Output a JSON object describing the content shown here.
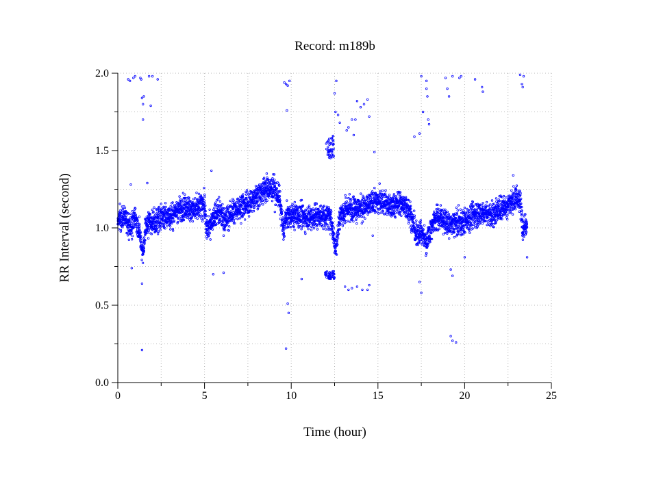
{
  "chart_data": {
    "type": "scatter",
    "title": "Record:  m189b",
    "xlabel": "Time (hour)",
    "ylabel": "RR Interval (second)",
    "xlim": [
      0,
      25
    ],
    "ylim": [
      0.0,
      2.0
    ],
    "xticks": [
      0,
      5,
      10,
      15,
      20,
      25
    ],
    "xtick_labels": [
      "0",
      "5",
      "10",
      "15",
      "20",
      "25"
    ],
    "yticks": [
      0.0,
      0.5,
      1.0,
      1.5,
      2.0
    ],
    "ytick_labels": [
      "0.0",
      "0.5",
      "1.0",
      "1.5",
      "2.0"
    ],
    "grid": true,
    "marker_color": "#0000ff",
    "marker": "open-circle",
    "series": [
      {
        "baseline": [
          [
            0.0,
            1.05
          ],
          [
            0.4,
            1.07
          ],
          [
            0.8,
            1.0
          ],
          [
            1.0,
            1.08
          ],
          [
            1.3,
            0.93
          ],
          [
            1.45,
            0.83
          ],
          [
            1.6,
            1.0
          ],
          [
            1.8,
            1.04
          ],
          [
            2.2,
            1.03
          ],
          [
            2.5,
            1.08
          ],
          [
            3.0,
            1.07
          ],
          [
            3.5,
            1.12
          ],
          [
            4.0,
            1.13
          ],
          [
            4.5,
            1.12
          ],
          [
            5.0,
            1.15
          ],
          [
            5.1,
            0.98
          ],
          [
            5.4,
            1.05
          ],
          [
            5.8,
            1.12
          ],
          [
            6.2,
            1.05
          ],
          [
            6.6,
            1.1
          ],
          [
            7.0,
            1.13
          ],
          [
            7.5,
            1.16
          ],
          [
            8.0,
            1.2
          ],
          [
            8.5,
            1.25
          ],
          [
            9.0,
            1.25
          ],
          [
            9.3,
            1.2
          ],
          [
            9.55,
            0.98
          ],
          [
            9.7,
            1.07
          ],
          [
            10.2,
            1.08
          ],
          [
            10.8,
            1.07
          ],
          [
            11.5,
            1.08
          ],
          [
            12.0,
            1.07
          ],
          [
            12.3,
            1.07
          ],
          [
            12.55,
            0.86
          ],
          [
            12.8,
            1.08
          ],
          [
            13.3,
            1.12
          ],
          [
            13.8,
            1.13
          ],
          [
            14.3,
            1.13
          ],
          [
            14.8,
            1.18
          ],
          [
            15.3,
            1.16
          ],
          [
            15.8,
            1.14
          ],
          [
            16.3,
            1.16
          ],
          [
            16.8,
            1.12
          ],
          [
            17.2,
            0.95
          ],
          [
            17.5,
            0.97
          ],
          [
            17.8,
            0.9
          ],
          [
            18.2,
            1.05
          ],
          [
            18.6,
            1.07
          ],
          [
            19.0,
            1.02
          ],
          [
            19.5,
            1.03
          ],
          [
            20.0,
            1.05
          ],
          [
            20.5,
            1.08
          ],
          [
            21.0,
            1.1
          ],
          [
            21.5,
            1.08
          ],
          [
            22.0,
            1.12
          ],
          [
            22.5,
            1.15
          ],
          [
            23.0,
            1.2
          ],
          [
            23.25,
            1.15
          ],
          [
            23.35,
            1.0
          ],
          [
            23.6,
            1.05
          ]
        ],
        "outliers": [
          [
            0.6,
            1.96
          ],
          [
            0.7,
            1.95
          ],
          [
            0.9,
            1.97
          ],
          [
            1.0,
            1.98
          ],
          [
            1.3,
            1.97
          ],
          [
            1.35,
            1.96
          ],
          [
            1.4,
            1.84
          ],
          [
            1.45,
            1.8
          ],
          [
            1.5,
            1.85
          ],
          [
            1.8,
            1.98
          ],
          [
            1.9,
            1.79
          ],
          [
            2.0,
            1.98
          ],
          [
            2.3,
            1.96
          ],
          [
            1.45,
            1.7
          ],
          [
            1.4,
            0.64
          ],
          [
            1.4,
            0.21
          ],
          [
            0.8,
            0.74
          ],
          [
            0.75,
            1.28
          ],
          [
            1.7,
            1.29
          ],
          [
            5.5,
            0.7
          ],
          [
            6.1,
            0.71
          ],
          [
            5.4,
            1.37
          ],
          [
            9.6,
            1.94
          ],
          [
            9.7,
            1.93
          ],
          [
            9.8,
            1.92
          ],
          [
            9.9,
            1.95
          ],
          [
            9.75,
            1.76
          ],
          [
            9.8,
            0.51
          ],
          [
            9.85,
            0.45
          ],
          [
            9.7,
            0.22
          ],
          [
            10.6,
            0.67
          ],
          [
            12.6,
            1.95
          ],
          [
            12.5,
            1.87
          ],
          [
            12.55,
            1.75
          ],
          [
            12.7,
            1.73
          ],
          [
            12.8,
            1.68
          ],
          [
            13.2,
            1.63
          ],
          [
            13.3,
            1.65
          ],
          [
            13.5,
            1.7
          ],
          [
            13.6,
            1.6
          ],
          [
            13.7,
            1.7
          ],
          [
            14.0,
            1.78
          ],
          [
            14.2,
            1.8
          ],
          [
            14.4,
            1.83
          ],
          [
            14.5,
            1.72
          ],
          [
            13.8,
            1.82
          ],
          [
            13.1,
            0.62
          ],
          [
            13.3,
            0.6
          ],
          [
            13.5,
            0.61
          ],
          [
            13.8,
            0.62
          ],
          [
            14.1,
            0.6
          ],
          [
            14.4,
            0.6
          ],
          [
            14.5,
            0.63
          ],
          [
            14.8,
            1.49
          ],
          [
            14.7,
            0.95
          ],
          [
            17.1,
            1.59
          ],
          [
            17.4,
            1.61
          ],
          [
            17.5,
            1.98
          ],
          [
            17.6,
            1.75
          ],
          [
            17.8,
            1.95
          ],
          [
            17.85,
            1.85
          ],
          [
            17.9,
            1.7
          ],
          [
            17.95,
            1.67
          ],
          [
            17.8,
            1.9
          ],
          [
            17.5,
            0.58
          ],
          [
            17.4,
            0.65
          ],
          [
            18.9,
            1.97
          ],
          [
            19.0,
            1.9
          ],
          [
            19.1,
            1.85
          ],
          [
            19.3,
            1.98
          ],
          [
            19.7,
            1.97
          ],
          [
            19.8,
            1.98
          ],
          [
            20.6,
            1.96
          ],
          [
            21.0,
            1.91
          ],
          [
            21.05,
            1.88
          ],
          [
            19.2,
            0.3
          ],
          [
            19.3,
            0.27
          ],
          [
            19.5,
            0.26
          ],
          [
            19.3,
            0.69
          ],
          [
            19.2,
            0.73
          ],
          [
            20.0,
            0.81
          ],
          [
            23.2,
            1.99
          ],
          [
            23.3,
            1.93
          ],
          [
            23.4,
            1.98
          ],
          [
            23.35,
            1.91
          ],
          [
            23.6,
            0.81
          ],
          [
            22.8,
            1.34
          ]
        ],
        "clusters": [
          {
            "x": [
              12.0,
              12.5
            ],
            "y": [
              1.45,
              1.6
            ]
          },
          {
            "x": [
              11.95,
              12.5
            ],
            "y": [
              0.67,
              0.72
            ]
          }
        ]
      }
    ]
  }
}
